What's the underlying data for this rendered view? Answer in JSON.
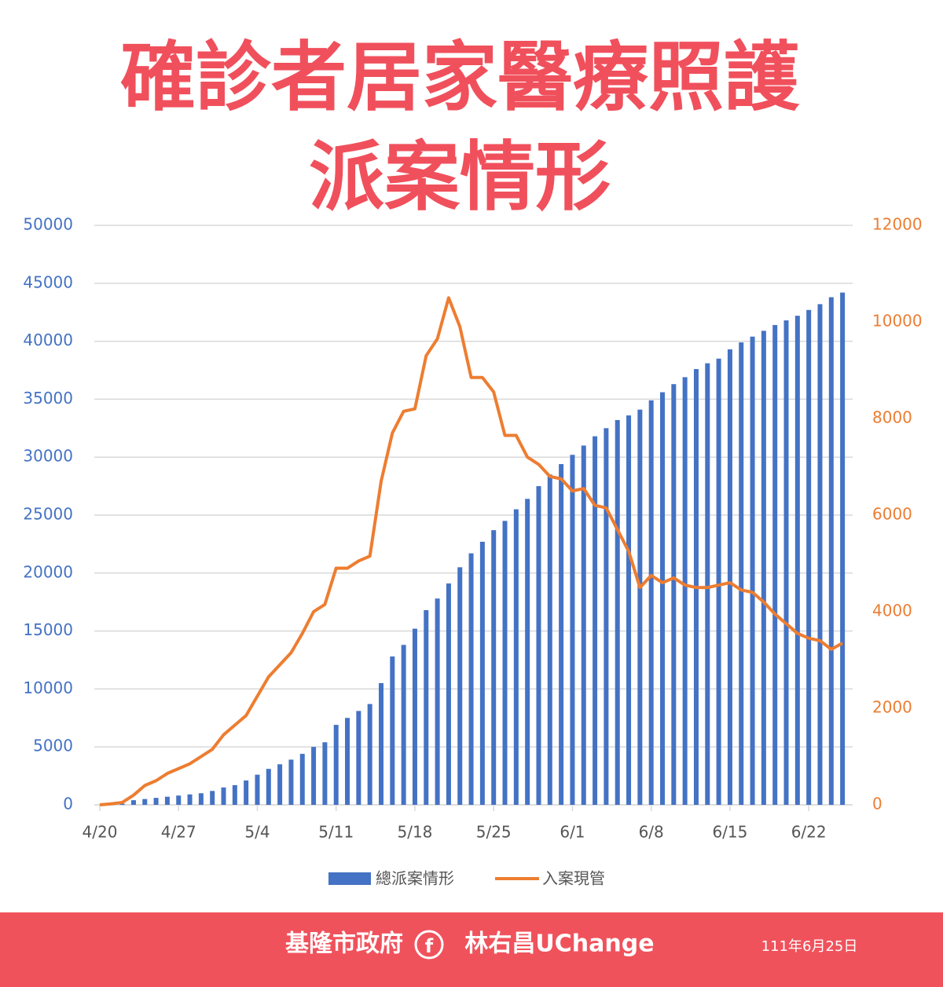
{
  "header": {
    "title_line1": "確診者居家醫療照護",
    "title_line2": "派案情形"
  },
  "footer": {
    "org": "基隆市政府",
    "page": "林右昌UChange",
    "date": "111年6月25日"
  },
  "chart_data": {
    "type": "bar_line",
    "categories": [
      "4/20",
      null,
      null,
      null,
      null,
      null,
      null,
      "4/27",
      null,
      null,
      null,
      null,
      null,
      null,
      "5/4",
      null,
      null,
      null,
      null,
      null,
      null,
      "5/11",
      null,
      null,
      null,
      null,
      null,
      null,
      "5/18",
      null,
      null,
      null,
      null,
      null,
      null,
      "5/25",
      null,
      null,
      null,
      null,
      null,
      null,
      "6/1",
      null,
      null,
      null,
      null,
      null,
      null,
      "6/8",
      null,
      null,
      null,
      null,
      null,
      null,
      "6/15",
      null,
      null,
      null,
      null,
      null,
      null,
      "6/22",
      null,
      null,
      null
    ],
    "series": [
      {
        "name": "總派案情形",
        "color": "#4472c4",
        "type": "bar",
        "values": [
          0,
          0,
          100,
          400,
          500,
          600,
          700,
          800,
          900,
          1000,
          1200,
          1500,
          1700,
          2100,
          2600,
          3100,
          3500,
          3900,
          4400,
          5000,
          5400,
          6900,
          7500,
          8100,
          8700,
          10500,
          12800,
          13800,
          15200,
          16800,
          17800,
          19100,
          20500,
          21700,
          22700,
          23700,
          24500,
          25500,
          26400,
          27500,
          28500,
          29400,
          30200,
          31000,
          31800,
          32500,
          33200,
          33600,
          34100,
          34900,
          35600,
          36300,
          36900,
          37600,
          38100,
          38500,
          39300,
          39900,
          40400,
          40900,
          41400,
          41800,
          42200,
          42700,
          43200,
          43800,
          44200
        ]
      },
      {
        "name": "入案現管",
        "color": "#ed7d31",
        "type": "line",
        "axis": "y2",
        "values": [
          0,
          20,
          50,
          200,
          400,
          500,
          650,
          750,
          850,
          1000,
          1150,
          1450,
          1650,
          1850,
          2250,
          2650,
          2900,
          3150,
          3550,
          4000,
          4150,
          4900,
          4900,
          5050,
          5150,
          6700,
          7700,
          8150,
          8200,
          9300,
          9650,
          10500,
          9900,
          8850,
          8850,
          8550,
          7650,
          7650,
          7200,
          7050,
          6800,
          6750,
          6500,
          6550,
          6200,
          6150,
          5700,
          5250,
          4500,
          4750,
          4600,
          4700,
          4550,
          4500,
          4500,
          4550,
          4600,
          4450,
          4400,
          4200,
          3950,
          3750,
          3550,
          3450,
          3400,
          3220,
          3350
        ]
      }
    ],
    "ylim": [
      0,
      50000
    ],
    "yticks": [
      0,
      5000,
      10000,
      15000,
      20000,
      25000,
      30000,
      35000,
      40000,
      45000,
      50000
    ],
    "y2lim": [
      0,
      12000
    ],
    "y2ticks": [
      0,
      2000,
      4000,
      6000,
      8000,
      10000,
      12000
    ],
    "grid": true
  }
}
